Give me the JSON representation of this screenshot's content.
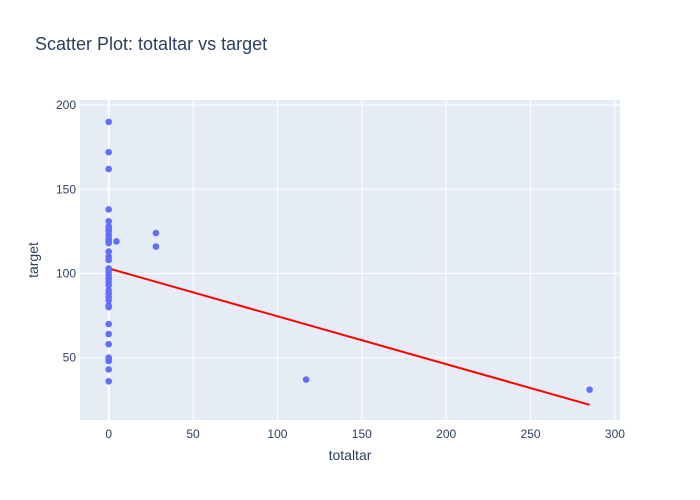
{
  "chart_data": {
    "type": "scatter",
    "title": "Scatter Plot: totaltar vs target",
    "xlabel": "totaltar",
    "ylabel": "target",
    "xlim": [
      -17,
      303
    ],
    "ylim": [
      13,
      203
    ],
    "xticks": [
      0,
      50,
      100,
      150,
      200,
      250,
      300
    ],
    "yticks": [
      50,
      100,
      150,
      200
    ],
    "grid": true,
    "colors": {
      "points": "#636efa",
      "trend": "#ff0000",
      "plot_bg": "#e5ecf6",
      "grid": "#ffffff",
      "text": "#2a3f5f"
    },
    "series": [
      {
        "type": "scatter",
        "x": [
          0,
          0,
          0,
          0,
          0,
          0,
          0,
          0,
          0,
          0,
          0,
          0,
          0,
          0,
          0,
          0,
          0,
          0,
          0,
          0,
          0,
          0,
          0,
          0,
          0,
          0,
          0,
          0,
          0,
          0,
          0,
          0,
          0,
          0,
          0,
          0,
          0,
          4.6,
          28,
          28,
          117,
          285
        ],
        "y": [
          190,
          172,
          162,
          138,
          131,
          127,
          125,
          123,
          120,
          118,
          113,
          110,
          108,
          103,
          101,
          99,
          97,
          95,
          93,
          90,
          88,
          86,
          84,
          81,
          80,
          70,
          64,
          58,
          50,
          49,
          48,
          43,
          36,
          128,
          126,
          121,
          119,
          119,
          124,
          116,
          37,
          31
        ]
      },
      {
        "type": "line",
        "x": [
          0,
          285
        ],
        "y": [
          103,
          22
        ]
      }
    ]
  }
}
